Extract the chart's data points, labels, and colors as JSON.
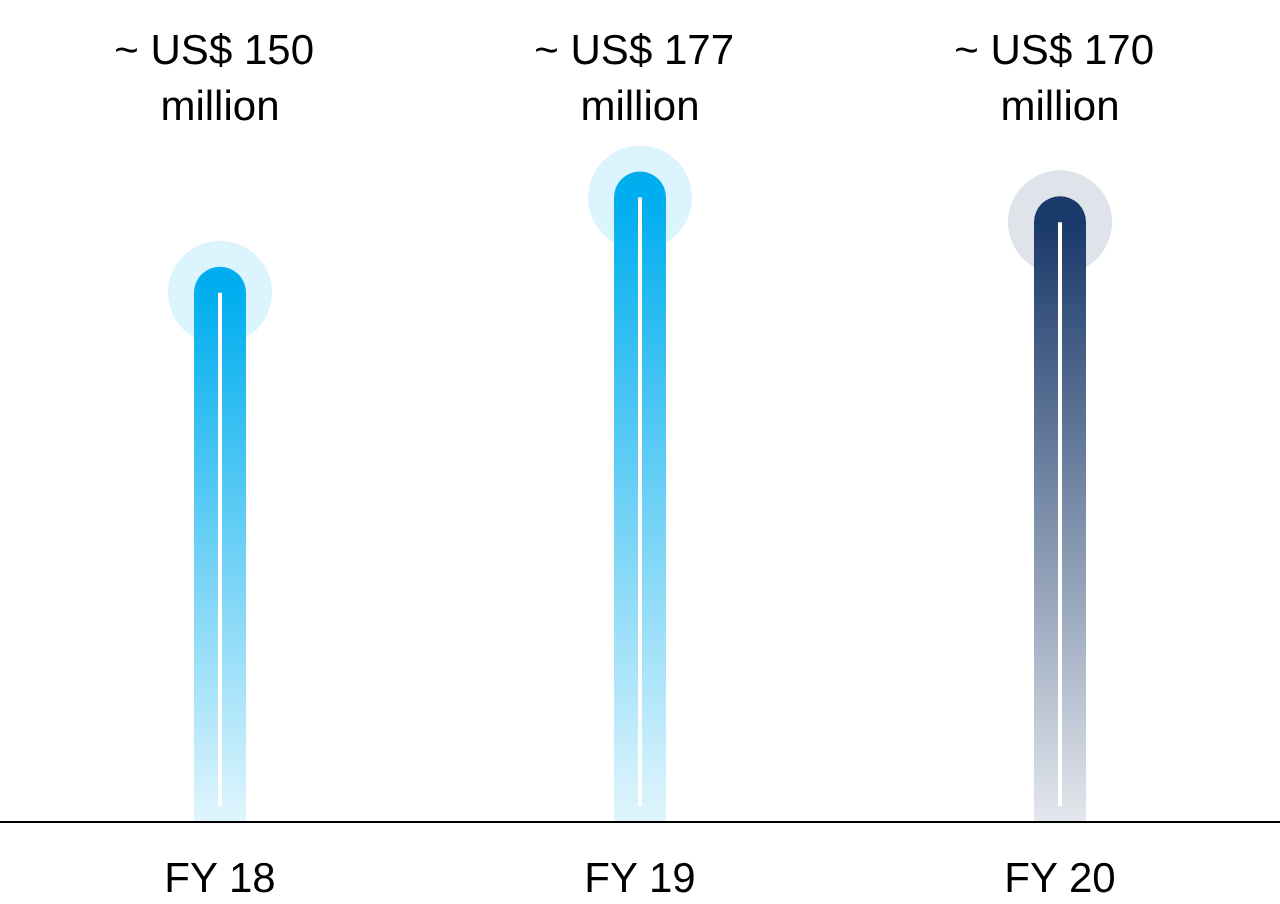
{
  "chart_data": {
    "type": "bar",
    "categories": [
      "FY 18",
      "FY 19",
      "FY 20"
    ],
    "values": [
      150000000,
      177000000,
      170000000
    ],
    "colors": [
      "#00aeef",
      "#00aeef",
      "#1a3a6b"
    ],
    "value_labels": [
      "~ US$ 150 million",
      "~ US$ 177 million",
      "~ US$ 170 million"
    ],
    "tick_labels": "x"
  }
}
